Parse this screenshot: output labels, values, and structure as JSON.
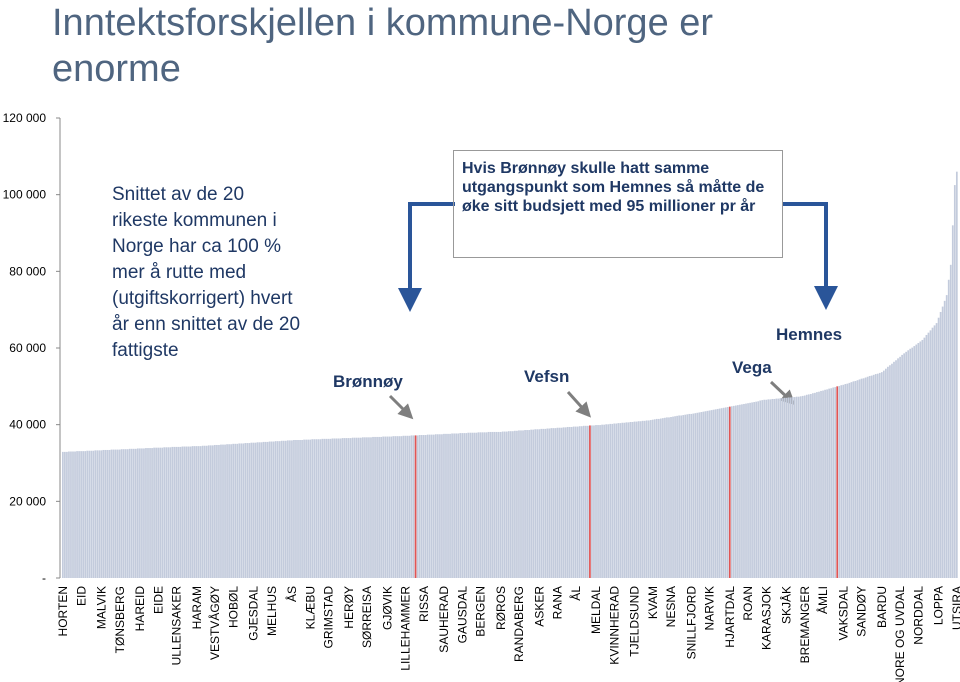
{
  "chart_data": {
    "type": "bar",
    "title": "Inntektsforskjellen i kommune-Norge er enorme",
    "notes": [
      "Snittet av de 20 rikeste kommunen i Norge har ca 100 % mer å rutte med (utgiftskorrigert) hvert år enn snittet av de 20 fattigste",
      "Hvis Brønnøy skulle hatt samme utgangspunkt som Hemnes så måtte de øke sitt budsjett med 95 millioner pr år"
    ],
    "annotations": [
      "Brønnøy",
      "Vefsn",
      "Vega",
      "Hemnes"
    ],
    "highlighted": [
      174,
      260,
      329,
      382
    ],
    "color": "#c3cbdc",
    "highlight_color": "#e05555",
    "ylim": [
      0,
      120000
    ],
    "yticks": [
      {
        "value": 0,
        "label": "-"
      },
      {
        "value": 20000,
        "label": "20 000"
      },
      {
        "value": 40000,
        "label": "40 000"
      },
      {
        "value": 60000,
        "label": "60 000"
      },
      {
        "value": 80000,
        "label": "80 000"
      },
      {
        "value": 100000,
        "label": "100 000"
      },
      {
        "value": 120000,
        "label": "120 000"
      }
    ],
    "categories": [
      "HORTEN",
      null,
      null,
      null,
      null,
      null,
      null,
      null,
      null,
      "EID",
      null,
      null,
      null,
      null,
      null,
      null,
      null,
      null,
      null,
      "MALVIK",
      null,
      null,
      null,
      null,
      null,
      null,
      null,
      null,
      "TØNSBERG",
      null,
      null,
      null,
      null,
      null,
      null,
      null,
      null,
      null,
      "HAREID",
      null,
      null,
      null,
      null,
      null,
      null,
      null,
      null,
      "EIDE",
      null,
      null,
      null,
      null,
      null,
      null,
      null,
      null,
      "ULLENSAKER",
      null,
      null,
      null,
      null,
      null,
      null,
      null,
      null,
      null,
      "HARAM",
      null,
      null,
      null,
      null,
      null,
      null,
      null,
      null,
      "VESTVÅGØY",
      null,
      null,
      null,
      null,
      null,
      null,
      null,
      null,
      "HOBØL",
      null,
      null,
      null,
      null,
      null,
      null,
      null,
      null,
      null,
      "GJESDAL",
      null,
      null,
      null,
      null,
      null,
      null,
      null,
      null,
      "MELHUS",
      null,
      null,
      null,
      null,
      null,
      null,
      null,
      null,
      null,
      "ÅS",
      null,
      null,
      null,
      null,
      null,
      null,
      null,
      null,
      "KLÆBU",
      null,
      null,
      null,
      null,
      null,
      null,
      null,
      null,
      "GRIMSTAD",
      null,
      null,
      null,
      null,
      null,
      null,
      null,
      null,
      null,
      "HERØY",
      null,
      null,
      null,
      null,
      null,
      null,
      null,
      null,
      "SØRREISA",
      null,
      null,
      null,
      null,
      null,
      null,
      null,
      null,
      null,
      "GJØVIK",
      null,
      null,
      null,
      null,
      null,
      null,
      null,
      null,
      "LILLEHAMMER",
      null,
      null,
      null,
      null,
      null,
      null,
      null,
      null,
      "RISSA",
      null,
      null,
      null,
      null,
      null,
      null,
      null,
      null,
      null,
      "SAUHERAD",
      null,
      null,
      null,
      null,
      null,
      null,
      null,
      null,
      "GAUSDAL",
      null,
      null,
      null,
      null,
      null,
      null,
      null,
      null,
      "BERGEN",
      null,
      null,
      null,
      null,
      null,
      null,
      null,
      null,
      null,
      "RØROS",
      null,
      null,
      null,
      null,
      null,
      null,
      null,
      null,
      "RANDABERG",
      null,
      null,
      null,
      null,
      null,
      null,
      null,
      null,
      null,
      "ASKER",
      null,
      null,
      null,
      null,
      null,
      null,
      null,
      null,
      "RANA",
      null,
      null,
      null,
      null,
      null,
      null,
      null,
      null,
      "ÅL",
      null,
      null,
      null,
      null,
      null,
      null,
      null,
      null,
      null,
      "MELDAL",
      null,
      null,
      null,
      null,
      null,
      null,
      null,
      null,
      "KVINNHERAD",
      null,
      null,
      null,
      null,
      null,
      null,
      null,
      null,
      null,
      "TJELDSUND",
      null,
      null,
      null,
      null,
      null,
      null,
      null,
      null,
      "KVAM",
      null,
      null,
      null,
      null,
      null,
      null,
      null,
      null,
      "NESNA",
      null,
      null,
      null,
      null,
      null,
      null,
      null,
      null,
      null,
      "SNILLFJORD",
      null,
      null,
      null,
      null,
      null,
      null,
      null,
      null,
      "NARVIK",
      null,
      null,
      null,
      null,
      null,
      null,
      null,
      null,
      null,
      "HJARTDAL",
      null,
      null,
      null,
      null,
      null,
      null,
      null,
      null,
      "ROAN",
      null,
      null,
      null,
      null,
      null,
      null,
      null,
      null,
      "KARASJOK",
      null,
      null,
      null,
      null,
      null,
      null,
      null,
      null,
      null,
      "SKJÅK",
      null,
      null,
      null,
      null,
      null,
      null,
      null,
      null,
      "BREMANGER",
      null,
      null,
      null,
      null,
      null,
      null,
      null,
      null,
      "ÅMLI",
      null,
      null,
      null,
      null,
      null,
      null,
      null,
      null,
      null,
      "VAKSDAL",
      null,
      null,
      null,
      null,
      null,
      null,
      null,
      null,
      "SANDØY",
      null,
      null,
      null,
      null,
      null,
      null,
      null,
      null,
      null,
      "BARDU",
      null,
      null,
      null,
      null,
      null,
      null,
      null,
      null,
      "NORE OG UVDAL",
      null,
      null,
      null,
      null,
      null,
      null,
      null,
      null,
      "NORDDAL",
      null,
      null,
      null,
      null,
      null,
      null,
      null,
      null,
      null,
      "LOPPA",
      null,
      null,
      null,
      null,
      null,
      null,
      null,
      null,
      "UTSIRA"
    ],
    "values": [
      32900,
      32900,
      32900,
      33000,
      33000,
      33000,
      33000,
      33100,
      33100,
      33100,
      33100,
      33100,
      33200,
      33200,
      33200,
      33200,
      33300,
      33300,
      33300,
      33300,
      33400,
      33400,
      33400,
      33400,
      33500,
      33500,
      33500,
      33500,
      33500,
      33600,
      33600,
      33600,
      33600,
      33700,
      33700,
      33700,
      33700,
      33800,
      33800,
      33800,
      33800,
      33900,
      33900,
      33900,
      33900,
      34000,
      34000,
      34000,
      34000,
      34000,
      34100,
      34100,
      34100,
      34100,
      34200,
      34200,
      34200,
      34200,
      34200,
      34300,
      34300,
      34300,
      34300,
      34300,
      34400,
      34400,
      34400,
      34400,
      34400,
      34500,
      34500,
      34500,
      34600,
      34600,
      34600,
      34700,
      34700,
      34700,
      34800,
      34800,
      34800,
      34900,
      34900,
      34900,
      35000,
      35000,
      35000,
      35100,
      35100,
      35100,
      35200,
      35200,
      35200,
      35300,
      35300,
      35300,
      35400,
      35400,
      35400,
      35500,
      35500,
      35500,
      35600,
      35600,
      35600,
      35700,
      35700,
      35700,
      35800,
      35800,
      35800,
      35900,
      35900,
      35900,
      36000,
      36000,
      36000,
      36000,
      36000,
      36100,
      36100,
      36100,
      36100,
      36200,
      36200,
      36200,
      36200,
      36200,
      36300,
      36300,
      36300,
      36300,
      36300,
      36400,
      36400,
      36400,
      36400,
      36400,
      36500,
      36500,
      36500,
      36500,
      36500,
      36600,
      36600,
      36600,
      36600,
      36600,
      36700,
      36700,
      36700,
      36700,
      36700,
      36800,
      36800,
      36800,
      36800,
      36800,
      36900,
      36900,
      36900,
      36900,
      36900,
      37000,
      37000,
      37000,
      37000,
      37000,
      37100,
      37100,
      37100,
      37100,
      37200,
      37200,
      37200,
      37200,
      37300,
      37300,
      37300,
      37300,
      37400,
      37400,
      37400,
      37400,
      37500,
      37500,
      37500,
      37500,
      37600,
      37600,
      37600,
      37600,
      37700,
      37700,
      37700,
      37700,
      37800,
      37800,
      37800,
      37800,
      37900,
      37900,
      37900,
      37900,
      37900,
      38000,
      38000,
      38000,
      38000,
      38000,
      38100,
      38100,
      38100,
      38100,
      38100,
      38100,
      38100,
      38200,
      38200,
      38200,
      38300,
      38300,
      38300,
      38400,
      38400,
      38500,
      38500,
      38500,
      38600,
      38600,
      38600,
      38700,
      38700,
      38800,
      38800,
      38800,
      38900,
      38900,
      38900,
      39000,
      39000,
      39100,
      39100,
      39100,
      39200,
      39200,
      39200,
      39300,
      39300,
      39400,
      39400,
      39400,
      39500,
      39500,
      39500,
      39600,
      39600,
      39700,
      39700,
      39700,
      39800,
      39800,
      39800,
      39900,
      39900,
      39900,
      40000,
      40000,
      40100,
      40100,
      40200,
      40200,
      40300,
      40300,
      40400,
      40400,
      40500,
      40500,
      40600,
      40600,
      40700,
      40700,
      40800,
      40800,
      40900,
      40900,
      41000,
      41000,
      41100,
      41100,
      41200,
      41300,
      41400,
      41500,
      41500,
      41600,
      41700,
      41800,
      41900,
      41900,
      42000,
      42100,
      42200,
      42300,
      42400,
      42400,
      42500,
      42600,
      42700,
      42800,
      42800,
      42900,
      43000,
      43100,
      43200,
      43300,
      43400,
      43500,
      43600,
      43700,
      43800,
      43900,
      44000,
      44100,
      44200,
      44300,
      44400,
      44500,
      44600,
      44700,
      44800,
      44900,
      45000,
      45100,
      45200,
      45300,
      45400,
      45500,
      45600,
      45700,
      45800,
      45900,
      46000,
      46100,
      46300,
      46400,
      46500,
      46500,
      46600,
      46600,
      46700,
      46700,
      46800,
      46800,
      46900,
      46900,
      47000,
      47000,
      47100,
      47100,
      47200,
      47200,
      47300,
      47300,
      47400,
      47500,
      47600,
      47800,
      47900,
      48000,
      48200,
      48300,
      48500,
      48600,
      48800,
      48900,
      49100,
      49200,
      49400,
      49500,
      49700,
      49800,
      50000,
      50100,
      50300,
      50400,
      50600,
      50700,
      50900,
      51100,
      51300,
      51400,
      51600,
      51800,
      52000,
      52100,
      52300,
      52500,
      52700,
      52800,
      53000,
      53200,
      53300,
      53500,
      53700,
      54100,
      54600,
      55100,
      55500,
      55900,
      56400,
      56800,
      57300,
      57700,
      58200,
      58600,
      59000,
      59400,
      59800,
      60100,
      60500,
      60900,
      61300,
      61700,
      62100,
      62700,
      63400,
      64000,
      64600,
      65300,
      65900,
      66500,
      67900,
      69400,
      70800,
      72300,
      73800,
      77800,
      81700,
      92000,
      102500,
      106000
    ]
  }
}
